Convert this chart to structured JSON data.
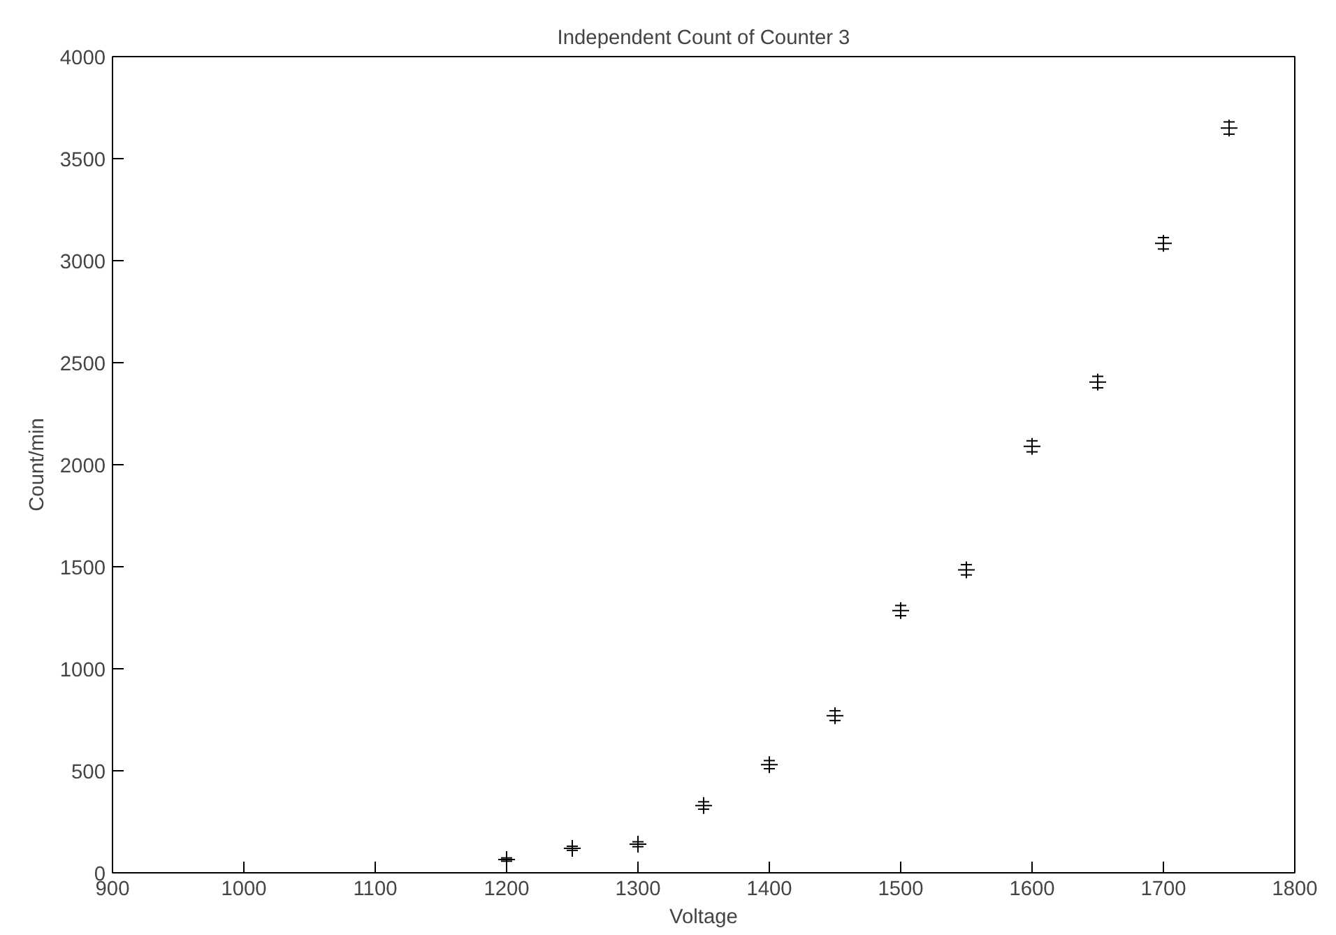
{
  "chart_data": {
    "type": "scatter",
    "title": "Independent Count of Counter 3",
    "xlabel": "Voltage",
    "ylabel": "Count/min",
    "x": [
      1200,
      1250,
      1300,
      1350,
      1400,
      1450,
      1500,
      1550,
      1600,
      1650,
      1700,
      1750
    ],
    "values": [
      65,
      120,
      140,
      330,
      530,
      770,
      1285,
      1485,
      2090,
      2405,
      3085,
      3650
    ],
    "errors": [
      8,
      10,
      12,
      18,
      20,
      24,
      25,
      25,
      27,
      28,
      28,
      30
    ],
    "color": "#000000",
    "marker": "cross",
    "grid": false,
    "xlim": [
      900,
      1800
    ],
    "xticks": [
      900,
      1000,
      1100,
      1200,
      1300,
      1400,
      1500,
      1600,
      1700,
      1800
    ],
    "ylim": [
      0,
      4000
    ],
    "yticks": [
      0,
      500,
      1000,
      1500,
      2000,
      2500,
      3000,
      3500,
      4000
    ]
  }
}
